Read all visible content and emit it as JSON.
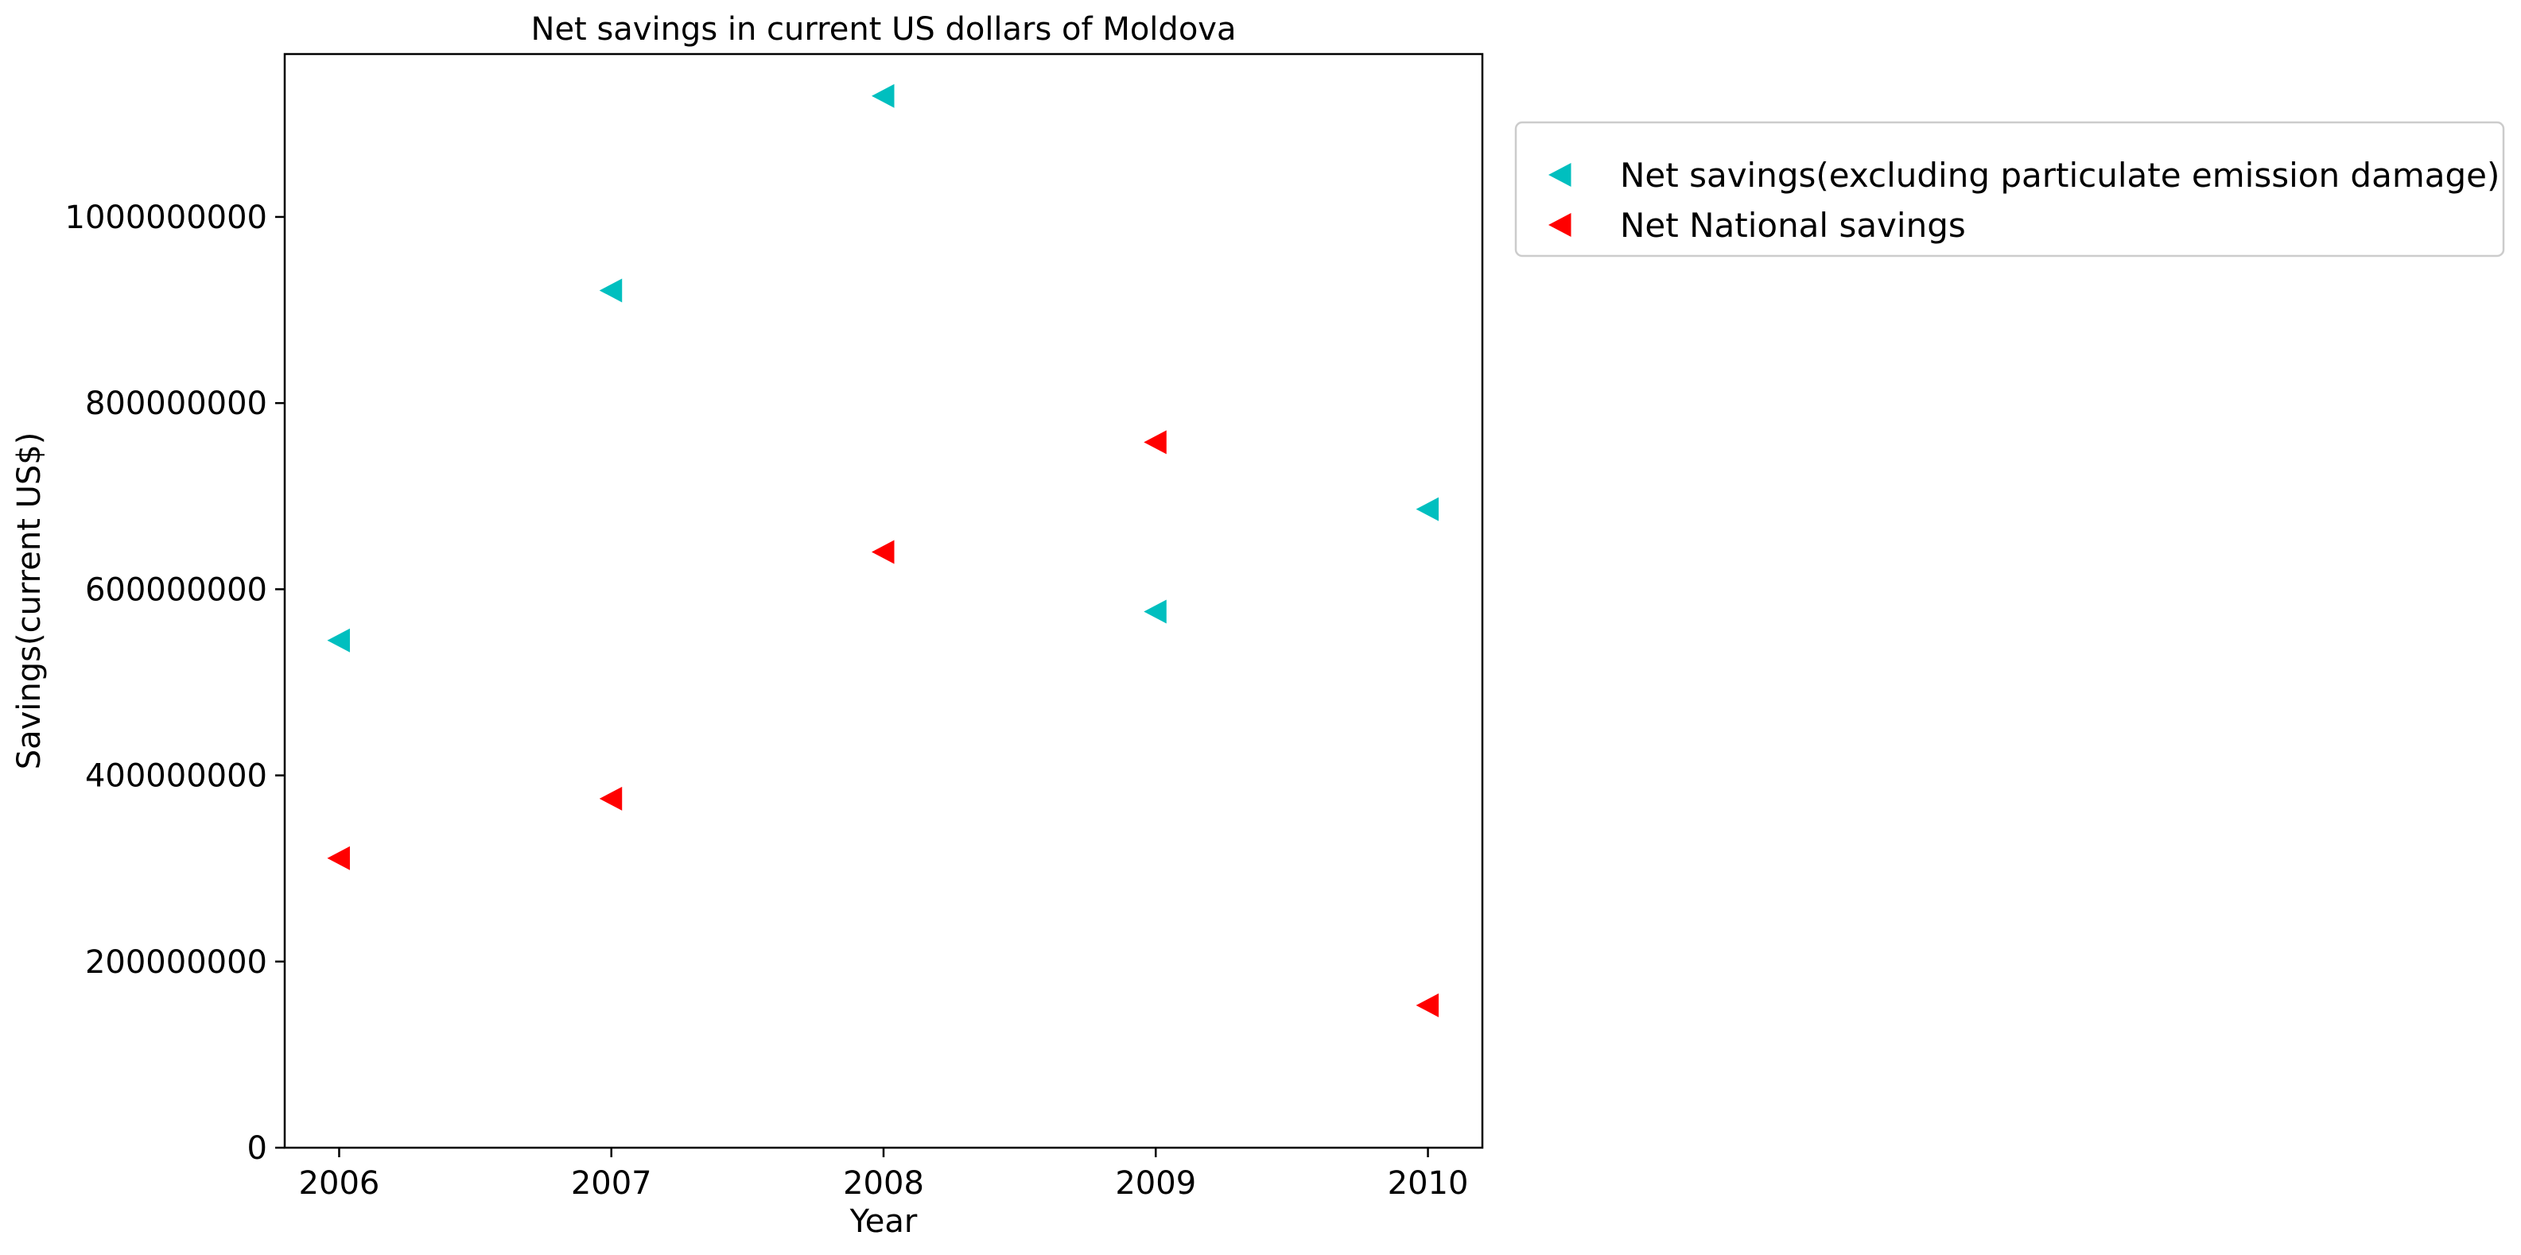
{
  "chart_data": {
    "type": "scatter",
    "title": "Net savings in current US dollars of Moldova",
    "xlabel": "Year",
    "ylabel": "Savings(current US$)",
    "x": [
      2006,
      2007,
      2008,
      2009,
      2010
    ],
    "x_tick_labels": [
      "2006",
      "2007",
      "2008",
      "2009",
      "2010"
    ],
    "xlim": [
      2005.8,
      2010.2
    ],
    "ylim": [
      0,
      1175000000
    ],
    "y_ticks": [
      0,
      200000000,
      400000000,
      600000000,
      800000000,
      1000000000
    ],
    "y_tick_labels": [
      "0",
      "200000000",
      "400000000",
      "600000000",
      "800000000",
      "1000000000"
    ],
    "marker": "triangle-left",
    "grid": false,
    "legend_position": "outside-right-top",
    "series": [
      {
        "name": "Net savings(excluding particulate emission damage)",
        "color": "#00bfbf",
        "values": [
          545000000,
          921000000,
          1130000000,
          576000000,
          686000000
        ]
      },
      {
        "name": "Net National savings",
        "color": "#ff0000",
        "values": [
          311000000,
          375000000,
          640000000,
          758000000,
          153000000
        ]
      }
    ]
  }
}
